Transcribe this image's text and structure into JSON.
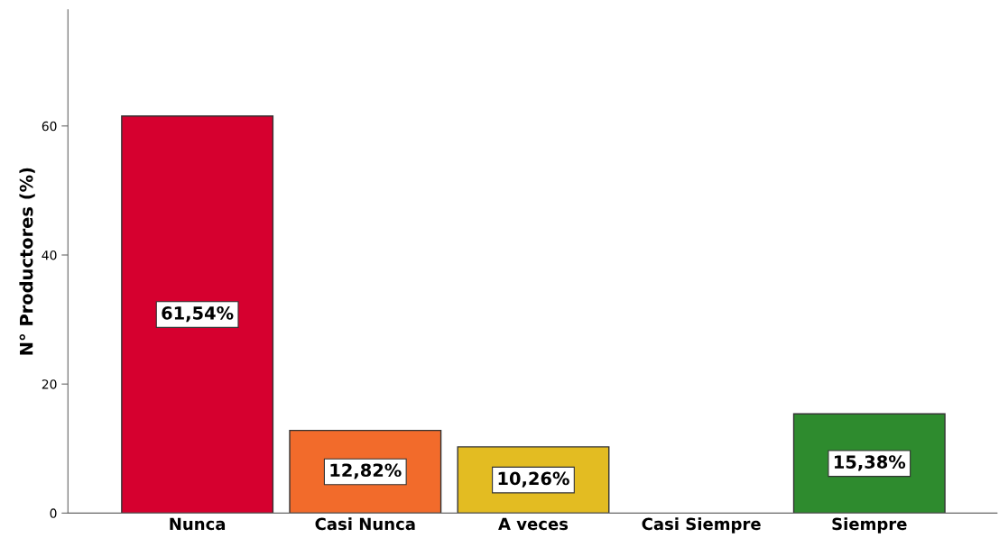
{
  "chart_data": {
    "type": "bar",
    "ylabel": "N° Productores (%)",
    "categories": [
      "Nunca",
      "Casi Nunca",
      "A veces",
      "Casi Siempre",
      "Siempre"
    ],
    "values": [
      61.54,
      12.82,
      10.26,
      0,
      15.38
    ],
    "colors": [
      "#d6002f",
      "#f26b2b",
      "#e3bc22",
      "#808080",
      "#2e8b2e"
    ],
    "value_labels": [
      "61,54%",
      "12,82%",
      "10,26%",
      null,
      "15,38%"
    ],
    "ylim": [
      0,
      78
    ],
    "yticks": [
      0,
      20,
      40,
      60
    ],
    "grid": false
  }
}
